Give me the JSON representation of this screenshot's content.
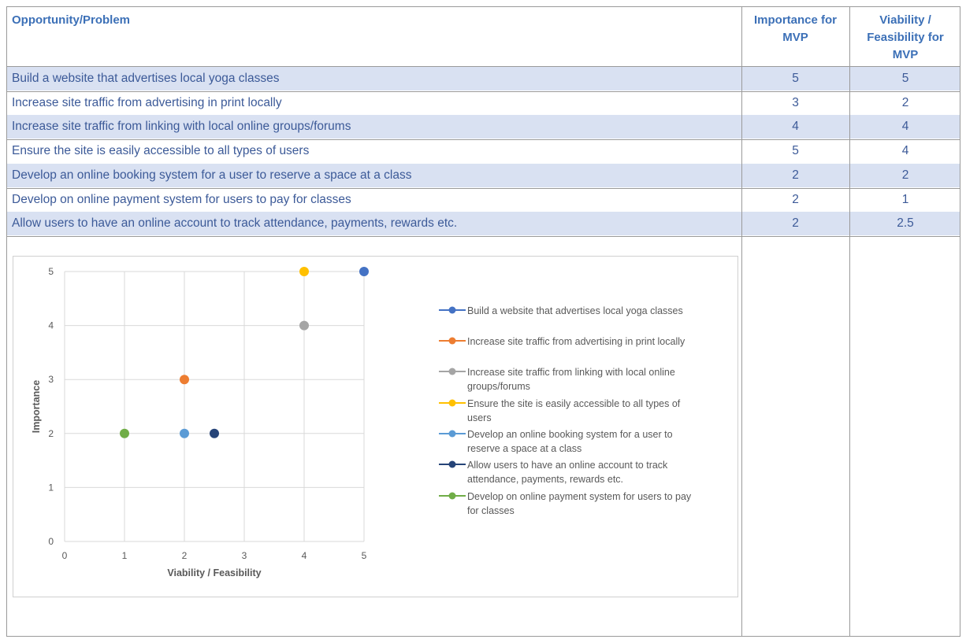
{
  "headers": {
    "opportunity": "Opportunity/Problem",
    "importance": [
      "Importance for",
      "MVP"
    ],
    "viability": [
      "Viability /",
      "Feasibility for",
      "MVP"
    ]
  },
  "rows": [
    {
      "label": "Build a website that advertises local yoga classes",
      "importance": "5",
      "viability": "5"
    },
    {
      "label": "Increase site traffic from advertising in print locally",
      "importance": "3",
      "viability": "2"
    },
    {
      "label": "Increase site traffic from linking with local online groups/forums",
      "importance": "4",
      "viability": "4"
    },
    {
      "label": "Ensure the site is easily accessible to all types of users",
      "importance": "5",
      "viability": "4"
    },
    {
      "label": "Develop an online booking system for a user to reserve a space at a class",
      "importance": "2",
      "viability": "2"
    },
    {
      "label": "Develop on online payment system for users to pay for classes",
      "importance": "2",
      "viability": "1"
    },
    {
      "label": "Allow users to have an online account to track attendance, payments, rewards etc.",
      "importance": "2",
      "viability": "2.5"
    }
  ],
  "chart_data": {
    "type": "scatter",
    "xlabel": "Viability / Feasibility",
    "ylabel": "Importance",
    "xlim": [
      0,
      5
    ],
    "ylim": [
      0,
      5
    ],
    "xticks": [
      "0",
      "1",
      "2",
      "3",
      "4",
      "5"
    ],
    "yticks": [
      "0",
      "1",
      "2",
      "3",
      "4",
      "5"
    ],
    "grid": true,
    "legend_position": "right",
    "series": [
      {
        "name": "Build a website that advertises local yoga classes",
        "legend_lines": [
          "Build a website that advertises local yoga classes"
        ],
        "color": "#4472c4",
        "x": 5,
        "y": 5
      },
      {
        "name": "Increase site traffic from advertising in print locally",
        "legend_lines": [
          "Increase site traffic from advertising in print locally"
        ],
        "color": "#ed7d31",
        "x": 2,
        "y": 3
      },
      {
        "name": "Increase site traffic from linking with local online groups/forums",
        "legend_lines": [
          "Increase site traffic from linking with local online",
          "groups/forums"
        ],
        "color": "#a5a5a5",
        "x": 4,
        "y": 4
      },
      {
        "name": "Ensure the site is easily accessible to all types of users",
        "legend_lines": [
          "Ensure the site is easily accessible to all types of",
          "users"
        ],
        "color": "#ffc000",
        "x": 4,
        "y": 5
      },
      {
        "name": "Develop an online booking system for a user to reserve a space at a class",
        "legend_lines": [
          "Develop an online booking system for a user to",
          "reserve a space at a class"
        ],
        "color": "#5b9bd5",
        "x": 2,
        "y": 2
      },
      {
        "name": "Allow users to have an online account to track attendance, payments, rewards etc.",
        "legend_lines": [
          "Allow users to have an online account to track",
          "attendance, payments, rewards etc."
        ],
        "color": "#264478",
        "x": 2.5,
        "y": 2
      },
      {
        "name": "Develop on online payment system for users to pay for classes",
        "legend_lines": [
          "Develop on online payment system for users to pay",
          "for classes"
        ],
        "color": "#70ad47",
        "x": 1,
        "y": 2
      }
    ]
  }
}
